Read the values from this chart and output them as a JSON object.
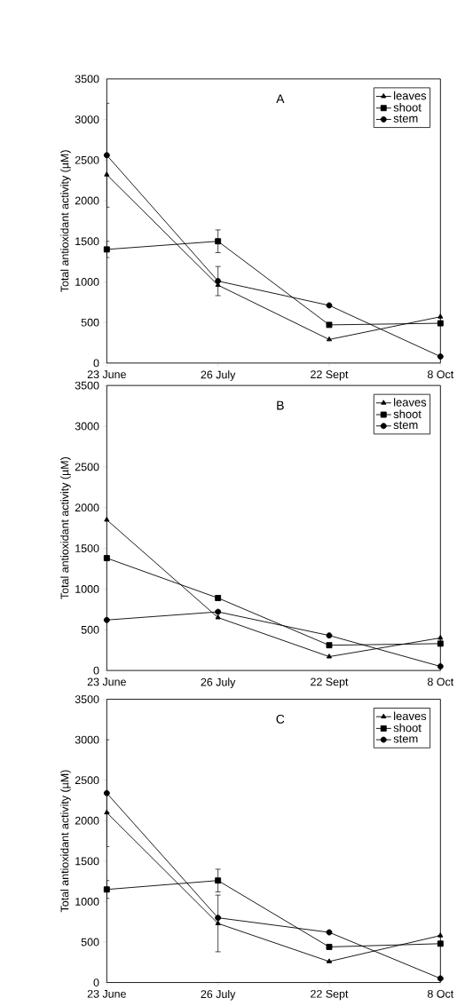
{
  "chart_data": [
    {
      "type": "line",
      "title": "A",
      "ylabel": "Total antioxidant activity (µM)",
      "categories": [
        "23 June",
        "26 July",
        "22 Sept",
        "8 Oct"
      ],
      "ylim": [
        0,
        3500
      ],
      "yticks": [
        0,
        500,
        1000,
        1500,
        2000,
        2500,
        3000,
        3500
      ],
      "legend": "top right",
      "line_style": "solid",
      "series": [
        {
          "name": "leaves",
          "color": "#000000",
          "marker": "triangle",
          "values": [
            2320,
            960,
            290,
            570
          ]
        },
        {
          "name": "shoot",
          "color": "#000000",
          "marker": "square",
          "values": [
            1400,
            1500,
            470,
            490
          ],
          "errors": [
            100,
            140,
            null,
            null
          ]
        },
        {
          "name": "stem",
          "color": "#000000",
          "marker": "circle",
          "values": [
            2560,
            1010,
            710,
            80
          ],
          "errors": [
            640,
            180,
            null,
            null
          ]
        }
      ]
    },
    {
      "type": "line",
      "title": "B",
      "ylabel": "Total antioxidant activity (µM)",
      "categories": [
        "23 June",
        "26 July",
        "22 Sept",
        "8 Oct"
      ],
      "ylim": [
        0,
        3500
      ],
      "yticks": [
        0,
        500,
        1000,
        1500,
        2000,
        2500,
        3000,
        3500
      ],
      "legend": "top right",
      "line_style": "solid",
      "series": [
        {
          "name": "leaves",
          "color": "#000000",
          "marker": "triangle",
          "values": [
            1850,
            650,
            170,
            400
          ]
        },
        {
          "name": "shoot",
          "color": "#000000",
          "marker": "square",
          "values": [
            1380,
            890,
            310,
            330
          ]
        },
        {
          "name": "stem",
          "color": "#000000",
          "marker": "circle",
          "values": [
            620,
            720,
            430,
            50
          ]
        }
      ]
    },
    {
      "type": "line",
      "title": "C",
      "ylabel": "Total antioxidant activity (µM)",
      "categories": [
        "23 June",
        "26 July",
        "22 Sept",
        "8 Oct"
      ],
      "ylim": [
        0,
        3500
      ],
      "yticks": [
        0,
        500,
        1000,
        1500,
        2000,
        2500,
        3000,
        3500
      ],
      "legend": "top right",
      "line_style": "solid",
      "series": [
        {
          "name": "leaves",
          "color": "#000000",
          "marker": "triangle",
          "values": [
            2100,
            730,
            260,
            580
          ],
          "errors": [
            null,
            350,
            null,
            null
          ]
        },
        {
          "name": "shoot",
          "color": "#000000",
          "marker": "square",
          "values": [
            1150,
            1260,
            440,
            480
          ],
          "errors": [
            110,
            140,
            null,
            null
          ]
        },
        {
          "name": "stem",
          "color": "#000000",
          "marker": "circle",
          "values": [
            2340,
            800,
            620,
            50
          ],
          "errors": [
            660,
            null,
            null,
            null
          ]
        }
      ]
    }
  ]
}
